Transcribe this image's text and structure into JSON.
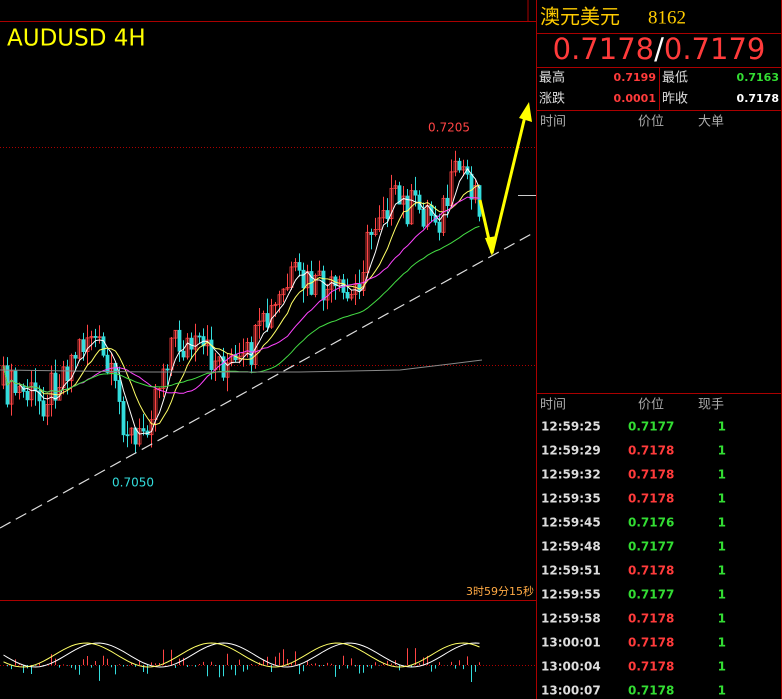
{
  "chart": {
    "title": "AUDUSD 4H",
    "high_label": "0.7205",
    "low_label": "0.7050",
    "countdown": "3时59分15秒"
  },
  "quote": {
    "name": "澳元美元",
    "code": "8162",
    "bid": "0.7178",
    "separator": "/",
    "ask": "0.7179",
    "rows": [
      [
        {
          "label": "最高",
          "value": "0.7199",
          "color": "#ff3b3b"
        },
        {
          "label": "最低",
          "value": "0.7163",
          "color": "#33dd33"
        }
      ],
      [
        {
          "label": "涨跌",
          "value": "0.0001",
          "color": "#ff3b3b"
        },
        {
          "label": "昨收",
          "value": "0.7178",
          "color": "#ffffff"
        }
      ]
    ]
  },
  "big_orders": {
    "headers": [
      "时间",
      "价位",
      "大单"
    ]
  },
  "trades": {
    "headers": [
      "时间",
      "价位",
      "现手"
    ],
    "rows": [
      {
        "time": "12:59:25",
        "price": "0.7177",
        "volume": "1",
        "color": "#33dd33"
      },
      {
        "time": "12:59:29",
        "price": "0.7178",
        "volume": "1",
        "color": "#ff3b3b"
      },
      {
        "time": "12:59:32",
        "price": "0.7178",
        "volume": "1",
        "color": "#ff3b3b"
      },
      {
        "time": "12:59:35",
        "price": "0.7178",
        "volume": "1",
        "color": "#ff3b3b"
      },
      {
        "time": "12:59:45",
        "price": "0.7176",
        "volume": "1",
        "color": "#33dd33"
      },
      {
        "time": "12:59:48",
        "price": "0.7177",
        "volume": "1",
        "color": "#33dd33"
      },
      {
        "time": "12:59:51",
        "price": "0.7178",
        "volume": "1",
        "color": "#ff3b3b"
      },
      {
        "time": "12:59:55",
        "price": "0.7177",
        "volume": "1",
        "color": "#33dd33"
      },
      {
        "time": "12:59:58",
        "price": "0.7178",
        "volume": "1",
        "color": "#ff3b3b"
      },
      {
        "time": "13:00:01",
        "price": "0.7178",
        "volume": "1",
        "color": "#ff3b3b"
      },
      {
        "time": "13:00:04",
        "price": "0.7178",
        "volume": "1",
        "color": "#ff3b3b"
      },
      {
        "time": "13:00:07",
        "price": "0.7178",
        "volume": "1",
        "color": "#33dd33"
      }
    ]
  }
}
